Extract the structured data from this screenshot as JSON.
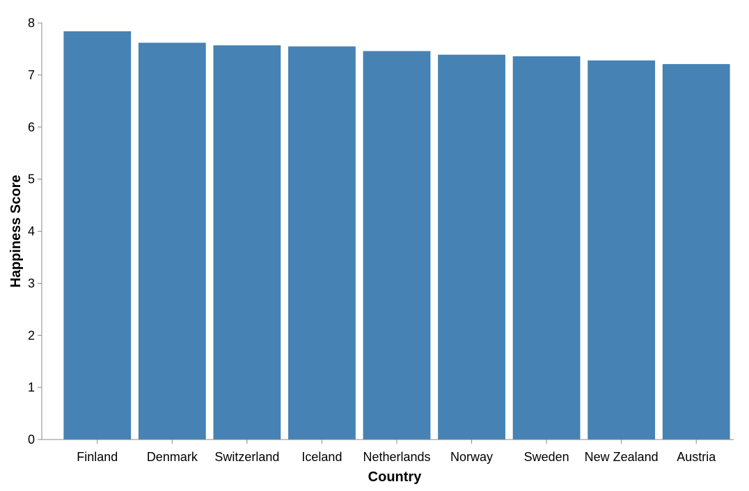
{
  "chart_data": {
    "type": "bar",
    "title": "",
    "xlabel": "Country",
    "ylabel": "Happiness Score",
    "categories": [
      "Finland",
      "Denmark",
      "Switzerland",
      "Iceland",
      "Netherlands",
      "Norway",
      "Sweden",
      "New Zealand",
      "Austria"
    ],
    "values": [
      7.84,
      7.62,
      7.57,
      7.55,
      7.46,
      7.39,
      7.36,
      7.28,
      7.21
    ],
    "ylim": [
      0,
      8
    ],
    "yticks": [
      0,
      1,
      2,
      3,
      4,
      5,
      6,
      7,
      8
    ],
    "grid": false,
    "legend": "none",
    "colors": {
      "bar": "#4682b4",
      "axis": "#888888",
      "text": "#000000"
    }
  }
}
